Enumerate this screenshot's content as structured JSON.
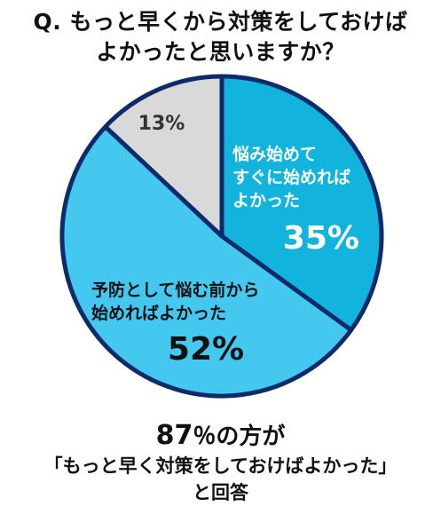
{
  "question": {
    "line1": "Q. もっと早くから対策をしておけば",
    "line2": "よかったと思いますか？"
  },
  "chart_data": {
    "type": "pie",
    "title": "Q. もっと早くから対策をしておけばよかったと思いますか？",
    "slices": [
      {
        "label_lines": [
          "悩み始めて",
          "すぐに始めれば",
          "よかった"
        ],
        "value": 35,
        "value_label": "35%",
        "color": "#12b3dc",
        "text_color": "#ffffff"
      },
      {
        "label_lines": [
          "予防として悩む前から",
          "始めればよかった"
        ],
        "value": 52,
        "value_label": "52%",
        "color": "#45c8f0",
        "text_color": "#111111"
      },
      {
        "label_lines": [],
        "value": 13,
        "value_label": "13%",
        "color": "#d9d9d9",
        "text_color": "#333333"
      }
    ],
    "border_color": "#0d2a6b"
  },
  "summary": {
    "number": "87",
    "rest": "％の方が",
    "line2": "「もっと早く対策をしておけばよかった」",
    "line3": "と回答"
  }
}
